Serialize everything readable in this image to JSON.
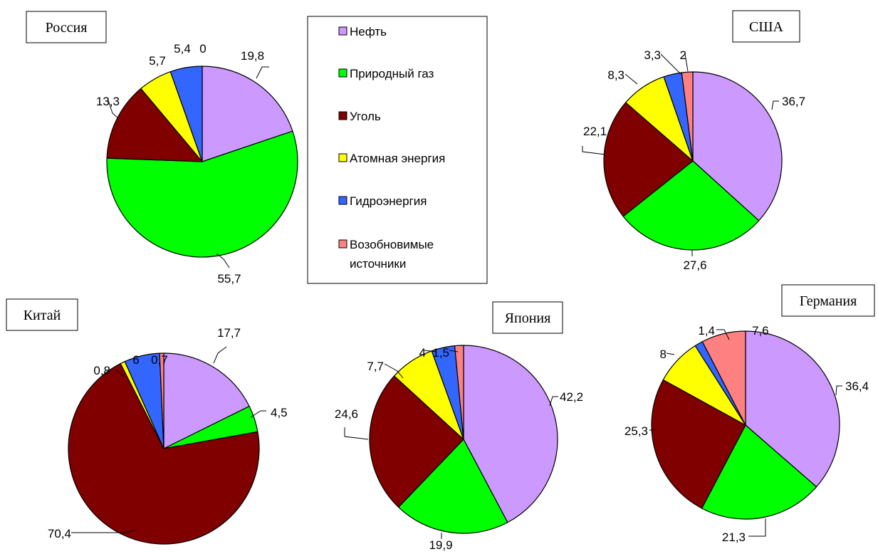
{
  "legend": {
    "items": [
      {
        "label": "Нефть",
        "color": "#cc99ff"
      },
      {
        "label": "Природный газ",
        "color": "#00ff00"
      },
      {
        "label": "Уголь",
        "color": "#800000"
      },
      {
        "label": "Атомная энергия",
        "color": "#ffff00"
      },
      {
        "label": "Гидроэнергия",
        "color": "#3366ff"
      },
      {
        "label": "Возобновимые источники",
        "label_lines": [
          "Возобновимые",
          "источники"
        ],
        "color": "#ff8080"
      }
    ]
  },
  "chart_data": [
    {
      "type": "pie",
      "title": "Россия",
      "categories": [
        "Нефть",
        "Природный газ",
        "Уголь",
        "Атомная энергия",
        "Гидроэнергия",
        "Возобновимые источники"
      ],
      "values": [
        19.8,
        55.7,
        13.3,
        5.7,
        5.4,
        0
      ],
      "value_labels": [
        "19,8",
        "55,7",
        "13,3",
        "5,7",
        "5,4",
        "0"
      ]
    },
    {
      "type": "pie",
      "title": "США",
      "categories": [
        "Нефть",
        "Природный газ",
        "Уголь",
        "Атомная энергия",
        "Гидроэнергия",
        "Возобновимые источники"
      ],
      "values": [
        36.7,
        27.6,
        22.1,
        8.3,
        3.3,
        2
      ],
      "value_labels": [
        "36,7",
        "27,6",
        "22,1",
        "8,3",
        "3,3",
        "2"
      ]
    },
    {
      "type": "pie",
      "title": "Китай",
      "categories": [
        "Нефть",
        "Природный газ",
        "Уголь",
        "Атомная энергия",
        "Гидроэнергия",
        "Возобновимые источники"
      ],
      "values": [
        17.7,
        4.5,
        70.4,
        0.8,
        6,
        0.7
      ],
      "value_labels": [
        "17,7",
        "4,5",
        "70,4",
        "0,8",
        "6",
        "0,7"
      ]
    },
    {
      "type": "pie",
      "title": "Япония",
      "categories": [
        "Нефть",
        "Природный газ",
        "Уголь",
        "Атомная энергия",
        "Гидроэнергия",
        "Возобновимые источники"
      ],
      "values": [
        42.2,
        19.9,
        24.6,
        7.7,
        4,
        1.5
      ],
      "value_labels": [
        "42,2",
        "19,9",
        "24,6",
        "7,7",
        "4",
        "1,5"
      ]
    },
    {
      "type": "pie",
      "title": "Германия",
      "categories": [
        "Нефть",
        "Природный газ",
        "Уголь",
        "Атомная энергия",
        "Гидроэнергия",
        "Возобновимые источники"
      ],
      "values": [
        36.4,
        21.3,
        25.3,
        8,
        1.4,
        7.6
      ],
      "value_labels": [
        "36,4",
        "21,3",
        "25,3",
        "8",
        "1,4",
        "7,6"
      ]
    }
  ]
}
